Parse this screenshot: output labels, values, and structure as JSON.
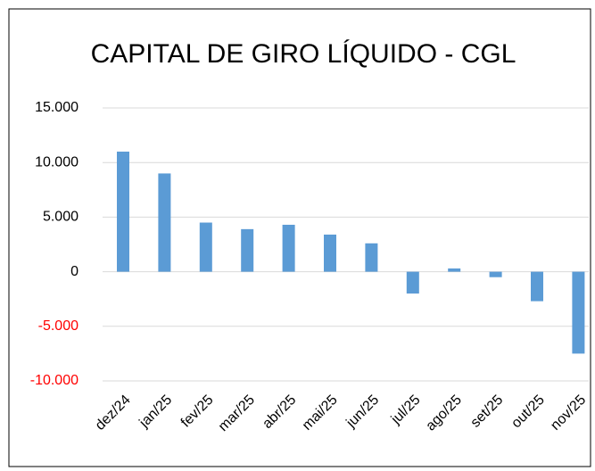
{
  "chart_data": {
    "type": "bar",
    "title": "CAPITAL DE GIRO LÍQUIDO - CGL",
    "categories": [
      "dez/24",
      "jan/25",
      "fev/25",
      "mar/25",
      "abr/25",
      "mai/25",
      "jun/25",
      "jul/25",
      "ago/25",
      "set/25",
      "out/25",
      "nov/25"
    ],
    "values": [
      11000,
      9000,
      4500,
      3900,
      4300,
      3400,
      2600,
      -2000,
      300,
      -500,
      -2700,
      -7500
    ],
    "color": "#5b9bd5",
    "ylim": [
      -10000,
      15000
    ],
    "yticks": [
      {
        "value": -10000,
        "label": "-10.000"
      },
      {
        "value": -5000,
        "label": "-5.000"
      },
      0,
      {
        "value": 5000,
        "label": "5.000"
      },
      {
        "value": 10000,
        "label": "10.000"
      },
      {
        "value": 15000,
        "label": "15.000"
      }
    ],
    "negative_tick_color": "#ff0000",
    "grid": true
  }
}
